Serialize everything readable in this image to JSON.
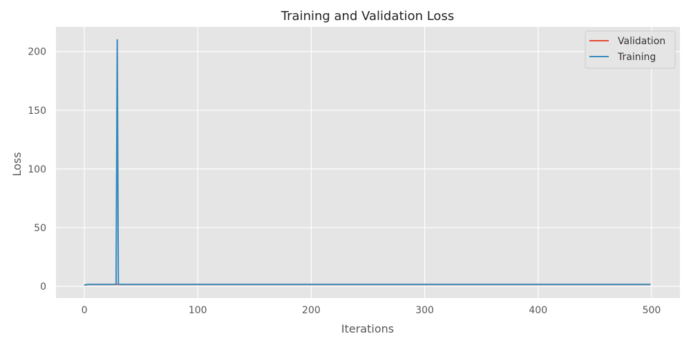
{
  "chart_data": {
    "type": "line",
    "title": "Training and Validation Loss",
    "xlabel": "Iterations",
    "ylabel": "Loss",
    "xlim": [
      -25,
      525
    ],
    "ylim": [
      -10,
      221
    ],
    "xticks": [
      0,
      100,
      200,
      300,
      400,
      500
    ],
    "yticks": [
      0,
      50,
      100,
      150,
      200
    ],
    "grid": true,
    "legend_position": "top-right",
    "colors": {
      "background": "#e5e5e5",
      "grid": "#ffffff",
      "validation": "#e24a33",
      "training": "#348abd"
    },
    "series": [
      {
        "name": "Validation",
        "color": "#e24a33",
        "x": [
          0,
          3,
          27,
          28,
          29,
          30,
          31,
          100,
          200,
          300,
          400,
          499
        ],
        "y": [
          1.0,
          1.6,
          1.6,
          1.6,
          1.6,
          1.6,
          1.6,
          1.6,
          1.6,
          1.6,
          1.6,
          1.6
        ]
      },
      {
        "name": "Training",
        "color": "#348abd",
        "x": [
          0,
          3,
          27,
          28,
          29,
          30,
          31,
          100,
          200,
          300,
          400,
          499
        ],
        "y": [
          1.0,
          1.6,
          1.6,
          2.0,
          210.0,
          2.0,
          1.6,
          1.6,
          1.6,
          1.6,
          1.6,
          1.6
        ]
      }
    ]
  }
}
